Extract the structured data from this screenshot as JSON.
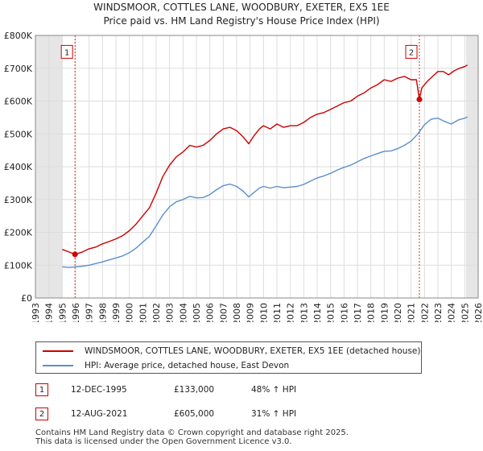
{
  "chart_data": {
    "type": "line",
    "title": "WINDSMOOR, COTTLES LANE, WOODBURY, EXETER, EX5 1EE",
    "subtitle": "Price paid vs. HM Land Registry's House Price Index (HPI)",
    "xlim": [
      1993,
      2026
    ],
    "ylim": [
      0,
      800000
    ],
    "y_ticks": [
      0,
      100000,
      200000,
      300000,
      400000,
      500000,
      600000,
      700000,
      800000
    ],
    "y_tick_labels": [
      "£0",
      "£100K",
      "£200K",
      "£300K",
      "£400K",
      "£500K",
      "£600K",
      "£700K",
      "£800K"
    ],
    "x_ticks": [
      1993,
      1994,
      1995,
      1996,
      1997,
      1998,
      1999,
      2000,
      2001,
      2002,
      2003,
      2004,
      2005,
      2006,
      2007,
      2008,
      2009,
      2010,
      2011,
      2012,
      2013,
      2014,
      2015,
      2016,
      2017,
      2018,
      2019,
      2020,
      2021,
      2022,
      2023,
      2024,
      2025,
      2026
    ],
    "shaded_ranges": [
      [
        1993,
        1995.0
      ],
      [
        2025.1,
        2026
      ]
    ],
    "series": [
      {
        "name": "WINDSMOOR, COTTLES LANE, WOODBURY, EXETER, EX5 1EE (detached house)",
        "color": "#cc0000",
        "x": [
          1995.0,
          1995.5,
          1995.95,
          1996.5,
          1997,
          1997.5,
          1998,
          1998.5,
          1999,
          1999.5,
          2000,
          2000.5,
          2001,
          2001.5,
          2002,
          2002.5,
          2003,
          2003.5,
          2004,
          2004.5,
          2005,
          2005.5,
          2006,
          2006.5,
          2007,
          2007.5,
          2008,
          2008.5,
          2008.9,
          2009.3,
          2009.7,
          2010,
          2010.5,
          2011,
          2011.5,
          2012,
          2012.5,
          2013,
          2013.5,
          2014,
          2014.5,
          2015,
          2015.5,
          2016,
          2016.5,
          2017,
          2017.5,
          2018,
          2018.5,
          2019,
          2019.5,
          2020,
          2020.5,
          2021,
          2021.4,
          2021.62,
          2021.8,
          2022.2,
          2022.6,
          2023,
          2023.4,
          2023.8,
          2024.2,
          2024.6,
          2025.0,
          2025.2
        ],
        "values": [
          148000,
          140000,
          133000,
          140000,
          150000,
          155000,
          165000,
          172000,
          180000,
          190000,
          205000,
          225000,
          250000,
          275000,
          320000,
          370000,
          405000,
          430000,
          445000,
          465000,
          460000,
          465000,
          480000,
          500000,
          515000,
          520000,
          510000,
          490000,
          470000,
          495000,
          515000,
          525000,
          515000,
          530000,
          520000,
          525000,
          525000,
          535000,
          550000,
          560000,
          565000,
          575000,
          585000,
          595000,
          600000,
          615000,
          625000,
          640000,
          650000,
          665000,
          660000,
          670000,
          675000,
          665000,
          665000,
          605000,
          640000,
          660000,
          675000,
          690000,
          690000,
          680000,
          692000,
          700000,
          705000,
          710000
        ]
      },
      {
        "name": "HPI: Average price, detached house, East Devon",
        "color": "#5b8fcc",
        "x": [
          1995.0,
          1995.5,
          1996,
          1996.5,
          1997,
          1997.5,
          1998,
          1998.5,
          1999,
          1999.5,
          2000,
          2000.5,
          2001,
          2001.5,
          2002,
          2002.5,
          2003,
          2003.5,
          2004,
          2004.5,
          2005,
          2005.5,
          2006,
          2006.5,
          2007,
          2007.5,
          2008,
          2008.5,
          2008.9,
          2009.3,
          2009.7,
          2010,
          2010.5,
          2011,
          2011.5,
          2012,
          2012.5,
          2013,
          2013.5,
          2014,
          2014.5,
          2015,
          2015.5,
          2016,
          2016.5,
          2017,
          2017.5,
          2018,
          2018.5,
          2019,
          2019.5,
          2020,
          2020.5,
          2021,
          2021.5,
          2022,
          2022.5,
          2023,
          2023.5,
          2024,
          2024.5,
          2025.0,
          2025.2
        ],
        "values": [
          95000,
          93000,
          95000,
          97000,
          100000,
          105000,
          110000,
          116000,
          122000,
          128000,
          138000,
          152000,
          170000,
          188000,
          220000,
          253000,
          278000,
          293000,
          300000,
          310000,
          305000,
          306000,
          315000,
          330000,
          342000,
          347000,
          340000,
          325000,
          308000,
          322000,
          335000,
          340000,
          335000,
          340000,
          336000,
          338000,
          340000,
          346000,
          356000,
          366000,
          372000,
          380000,
          390000,
          398000,
          405000,
          415000,
          425000,
          433000,
          440000,
          447000,
          448000,
          455000,
          465000,
          478000,
          500000,
          528000,
          545000,
          548000,
          538000,
          530000,
          542000,
          548000,
          552000
        ]
      }
    ],
    "annotations": [
      {
        "id": "1",
        "x": 1995.95,
        "y": 133000,
        "label_y": 750000
      },
      {
        "id": "2",
        "x": 2021.62,
        "y": 605000,
        "label_y": 750000
      }
    ]
  },
  "legend": {
    "red_label": "WINDSMOOR, COTTLES LANE, WOODBURY, EXETER, EX5 1EE (detached house)",
    "blue_label": "HPI: Average price, detached house, East Devon"
  },
  "transactions": [
    {
      "id": "1",
      "date": "12-DEC-1995",
      "price": "£133,000",
      "hpi": "48% ↑ HPI"
    },
    {
      "id": "2",
      "date": "12-AUG-2021",
      "price": "£605,000",
      "hpi": "31% ↑ HPI"
    }
  ],
  "footer": {
    "line1": "Contains HM Land Registry data © Crown copyright and database right 2025.",
    "line2": "This data is licensed under the Open Government Licence v3.0."
  }
}
